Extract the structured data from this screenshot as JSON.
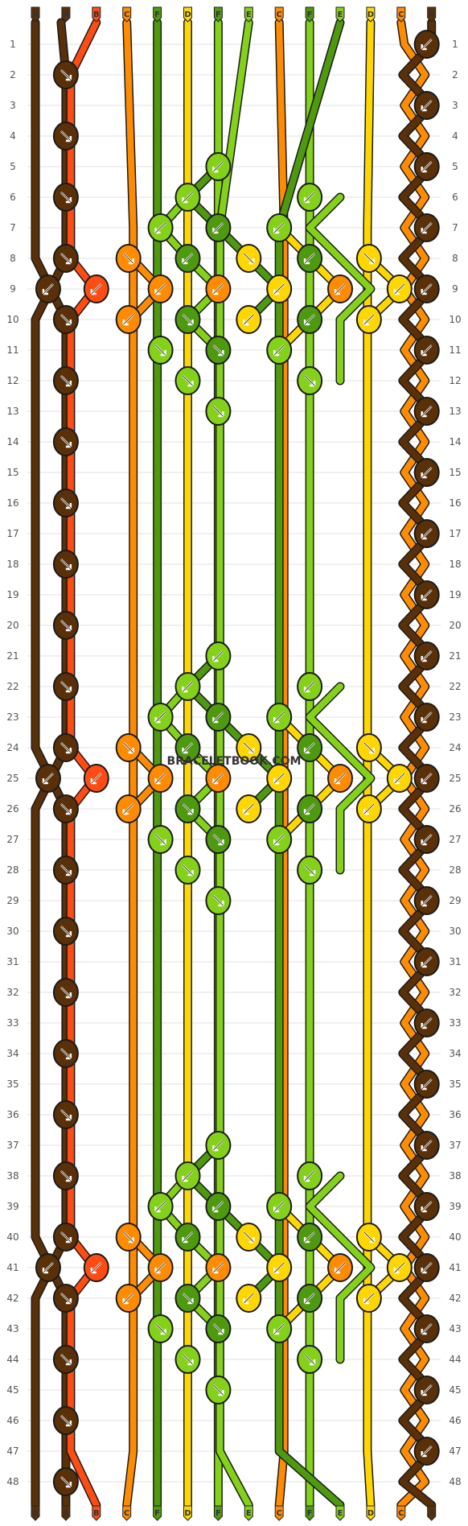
{
  "watermark": "BRACELETBOOK.COM",
  "strand_letters": [
    "A",
    "A",
    "B",
    "C",
    "F",
    "D",
    "F",
    "E",
    "C",
    "F",
    "E",
    "D",
    "C",
    "A"
  ],
  "row_count": 48,
  "colors": {
    "A": "#5a3008",
    "B": "#ff4c12",
    "C": "#ff8c00",
    "D": "#ffd700",
    "E": "#84d11a",
    "F": "#4e9a0e"
  },
  "knot_colors": {
    "A": "#5a3008",
    "B": "#ff4c12",
    "C": "#ff8c00",
    "D": "#ffd700",
    "E": "#84d11a",
    "F": "#4e9a0e"
  }
}
